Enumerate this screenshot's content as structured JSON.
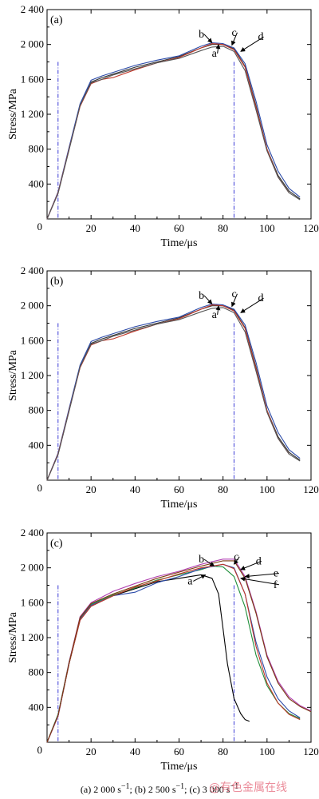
{
  "chart_data": [
    {
      "type": "line",
      "panel_label": "(a)",
      "xlabel": "Time/μs",
      "ylabel": "Stress/MPa",
      "xlim": [
        0,
        120
      ],
      "ylim": [
        0,
        2400
      ],
      "xticks": [
        0,
        20,
        40,
        60,
        80,
        100,
        120
      ],
      "yticks": [
        0,
        400,
        800,
        1200,
        1600,
        2000,
        2400
      ],
      "x_tick_labels": [
        "0",
        "20",
        "40",
        "60",
        "80",
        "100",
        "120"
      ],
      "y_tick_labels": [
        "",
        "400",
        "800",
        "1 200",
        "1 600",
        "2 000",
        "2 400"
      ],
      "origin_label": "0",
      "markers_x": [
        5,
        85
      ],
      "annotations": [
        {
          "label": "a",
          "at": [
            78,
            2000
          ],
          "text_at": [
            76,
            1860
          ]
        },
        {
          "label": "b",
          "at": [
            75,
            2020
          ],
          "text_at": [
            70,
            2080
          ]
        },
        {
          "label": "c",
          "at": [
            84,
            1990
          ],
          "text_at": [
            85,
            2100
          ]
        },
        {
          "label": "d",
          "at": [
            88,
            1920
          ],
          "text_at": [
            97,
            2050
          ]
        }
      ],
      "series": [
        {
          "color": "#333333",
          "x": [
            0,
            5,
            10,
            15,
            20,
            25,
            30,
            40,
            50,
            60,
            70,
            75,
            80,
            85,
            90,
            95,
            100,
            105,
            110,
            115
          ],
          "y": [
            0,
            300,
            800,
            1300,
            1570,
            1620,
            1660,
            1740,
            1800,
            1860,
            1960,
            2000,
            2000,
            1950,
            1750,
            1300,
            800,
            500,
            320,
            230
          ]
        },
        {
          "color": "#2b4aa8",
          "x": [
            0,
            5,
            10,
            15,
            20,
            25,
            30,
            40,
            50,
            60,
            70,
            75,
            80,
            85,
            90,
            95,
            100,
            105,
            110,
            115
          ],
          "y": [
            0,
            310,
            820,
            1320,
            1590,
            1640,
            1680,
            1760,
            1820,
            1870,
            1980,
            2020,
            2010,
            1960,
            1780,
            1350,
            850,
            550,
            350,
            250
          ]
        },
        {
          "color": "#c0392b",
          "x": [
            0,
            5,
            10,
            15,
            20,
            25,
            30,
            40,
            50,
            60,
            70,
            75,
            80,
            85,
            90,
            95,
            100,
            105,
            110
          ],
          "y": [
            0,
            300,
            800,
            1290,
            1550,
            1600,
            1620,
            1710,
            1790,
            1850,
            1960,
            2010,
            2000,
            1940,
            1740,
            1280,
            800,
            480,
            300
          ]
        },
        {
          "color": "#555555",
          "x": [
            0,
            5,
            10,
            15,
            20,
            25,
            30,
            40,
            50,
            60,
            70,
            75,
            80,
            85,
            90,
            95,
            100,
            105,
            110,
            115
          ],
          "y": [
            0,
            290,
            790,
            1300,
            1560,
            1600,
            1650,
            1720,
            1790,
            1840,
            1930,
            1970,
            1980,
            1920,
            1700,
            1250,
            780,
            480,
            300,
            220
          ]
        }
      ]
    },
    {
      "type": "line",
      "panel_label": "(b)",
      "xlabel": "Time/μs",
      "ylabel": "Stress/MPa",
      "xlim": [
        0,
        120
      ],
      "ylim": [
        0,
        2400
      ],
      "xticks": [
        0,
        20,
        40,
        60,
        80,
        100,
        120
      ],
      "yticks": [
        0,
        400,
        800,
        1200,
        1600,
        2000,
        2400
      ],
      "x_tick_labels": [
        "0",
        "20",
        "40",
        "60",
        "80",
        "100",
        "120"
      ],
      "y_tick_labels": [
        "",
        "400",
        "800",
        "1 200",
        "1 600",
        "2 000",
        "2 400"
      ],
      "origin_label": "0",
      "markers_x": [
        5,
        85
      ],
      "annotations": [
        {
          "label": "a",
          "at": [
            78,
            2000
          ],
          "text_at": [
            76,
            1860
          ]
        },
        {
          "label": "b",
          "at": [
            75,
            2020
          ],
          "text_at": [
            70,
            2080
          ]
        },
        {
          "label": "c",
          "at": [
            84,
            1990
          ],
          "text_at": [
            85,
            2100
          ]
        },
        {
          "label": "d",
          "at": [
            88,
            1920
          ],
          "text_at": [
            97,
            2050
          ]
        }
      ],
      "series": [
        {
          "color": "#333333",
          "x": [
            0,
            5,
            10,
            15,
            20,
            25,
            30,
            40,
            50,
            60,
            70,
            75,
            80,
            85,
            90,
            95,
            100,
            105,
            110,
            115
          ],
          "y": [
            0,
            300,
            800,
            1300,
            1570,
            1620,
            1660,
            1740,
            1800,
            1860,
            1960,
            2000,
            2000,
            1950,
            1750,
            1300,
            800,
            500,
            320,
            230
          ]
        },
        {
          "color": "#2b4aa8",
          "x": [
            0,
            5,
            10,
            15,
            20,
            25,
            30,
            40,
            50,
            60,
            70,
            75,
            80,
            85,
            90,
            95,
            100,
            105,
            110,
            115
          ],
          "y": [
            0,
            310,
            820,
            1320,
            1590,
            1640,
            1680,
            1760,
            1820,
            1870,
            1980,
            2020,
            2010,
            1960,
            1780,
            1350,
            850,
            550,
            350,
            250
          ]
        },
        {
          "color": "#c0392b",
          "x": [
            0,
            5,
            10,
            15,
            20,
            25,
            30,
            40,
            50,
            60,
            70,
            75,
            80,
            85,
            90,
            95,
            100,
            105,
            110
          ],
          "y": [
            0,
            300,
            800,
            1290,
            1550,
            1600,
            1620,
            1710,
            1790,
            1850,
            1960,
            2010,
            2000,
            1940,
            1740,
            1280,
            800,
            480,
            300
          ]
        },
        {
          "color": "#555555",
          "x": [
            0,
            5,
            10,
            15,
            20,
            25,
            30,
            40,
            50,
            60,
            70,
            75,
            80,
            85,
            90,
            95,
            100,
            105,
            110,
            115
          ],
          "y": [
            0,
            290,
            790,
            1300,
            1560,
            1600,
            1650,
            1720,
            1790,
            1840,
            1930,
            1970,
            1980,
            1920,
            1700,
            1250,
            780,
            480,
            300,
            220
          ]
        }
      ]
    },
    {
      "type": "line",
      "panel_label": "(c)",
      "xlabel": "Time/μs",
      "ylabel": "Stress/MPa",
      "xlim": [
        0,
        120
      ],
      "ylim": [
        0,
        2400
      ],
      "xticks": [
        0,
        20,
        40,
        60,
        80,
        100,
        120
      ],
      "yticks": [
        0,
        400,
        800,
        1200,
        1600,
        2000,
        2400
      ],
      "x_tick_labels": [
        "0",
        "20",
        "40",
        "60",
        "80",
        "100",
        "120"
      ],
      "y_tick_labels": [
        "",
        "400",
        "800",
        "1 200",
        "1 600",
        "2 000",
        "2 400"
      ],
      "origin_label": "0",
      "markers_x": [
        5,
        85
      ],
      "annotations": [
        {
          "label": "a",
          "at": [
            72,
            1920
          ],
          "text_at": [
            65,
            1810
          ]
        },
        {
          "label": "b",
          "at": [
            76,
            2020
          ],
          "text_at": [
            70,
            2060
          ]
        },
        {
          "label": "c",
          "at": [
            85,
            2040
          ],
          "text_at": [
            86,
            2090
          ]
        },
        {
          "label": "d",
          "at": [
            88,
            1980
          ],
          "text_at": [
            96,
            2040
          ]
        },
        {
          "label": "e",
          "at": [
            90,
            1900
          ],
          "text_at": [
            104,
            1900
          ]
        },
        {
          "label": "f",
          "at": [
            88,
            1880
          ],
          "text_at": [
            104,
            1770
          ]
        }
      ],
      "series": [
        {
          "color": "#000000",
          "x": [
            0,
            5,
            10,
            15,
            20,
            30,
            40,
            50,
            60,
            70,
            75,
            78,
            80,
            82,
            85,
            88,
            90,
            92
          ],
          "y": [
            0,
            300,
            900,
            1400,
            1560,
            1680,
            1760,
            1840,
            1880,
            1920,
            1880,
            1700,
            1300,
            900,
            500,
            330,
            260,
            240
          ]
        },
        {
          "color": "#1f8f3a",
          "x": [
            0,
            5,
            10,
            15,
            20,
            30,
            40,
            50,
            60,
            70,
            75,
            80,
            85,
            90,
            95,
            100,
            105,
            110,
            115
          ],
          "y": [
            0,
            320,
            920,
            1420,
            1580,
            1690,
            1770,
            1860,
            1920,
            1980,
            2020,
            2010,
            1900,
            1550,
            1000,
            650,
            450,
            330,
            270
          ]
        },
        {
          "color": "#2b4aa8",
          "x": [
            0,
            5,
            10,
            15,
            20,
            30,
            40,
            50,
            60,
            70,
            80,
            85,
            90,
            95,
            100,
            105,
            110,
            115
          ],
          "y": [
            0,
            310,
            910,
            1410,
            1570,
            1680,
            1720,
            1830,
            1900,
            1990,
            2040,
            2000,
            1700,
            1150,
            750,
            500,
            360,
            280
          ]
        },
        {
          "color": "#c0392b",
          "x": [
            0,
            5,
            10,
            15,
            20,
            30,
            40,
            50,
            60,
            70,
            80,
            85,
            90,
            95,
            100,
            105,
            110,
            115
          ],
          "y": [
            0,
            300,
            900,
            1400,
            1560,
            1680,
            1780,
            1850,
            1930,
            2000,
            2040,
            1990,
            1700,
            1100,
            680,
            450,
            320,
            260
          ]
        },
        {
          "color": "#b03fb0",
          "x": [
            0,
            5,
            10,
            15,
            20,
            30,
            40,
            50,
            60,
            70,
            80,
            85,
            90,
            95,
            100,
            105,
            110,
            115,
            120
          ],
          "y": [
            0,
            300,
            920,
            1440,
            1600,
            1730,
            1820,
            1900,
            1960,
            2040,
            2100,
            2100,
            1900,
            1500,
            1000,
            700,
            520,
            420,
            360
          ]
        },
        {
          "color": "#7a3b10",
          "x": [
            0,
            5,
            10,
            15,
            20,
            30,
            40,
            50,
            60,
            70,
            80,
            85,
            90,
            95,
            100,
            105,
            110,
            115,
            120
          ],
          "y": [
            0,
            310,
            910,
            1430,
            1590,
            1700,
            1790,
            1880,
            1950,
            2020,
            2080,
            2080,
            1880,
            1480,
            980,
            680,
            500,
            410,
            350
          ]
        }
      ]
    }
  ],
  "caption_parts": {
    "a": "(a) 2 000 s",
    "a_sup": "−1",
    "b": "; (b) 2 500 s",
    "b_sup": "−1",
    "c": "; (c) 3 000 s",
    "c_sup": "−1"
  },
  "watermark": "@有色金属在线"
}
